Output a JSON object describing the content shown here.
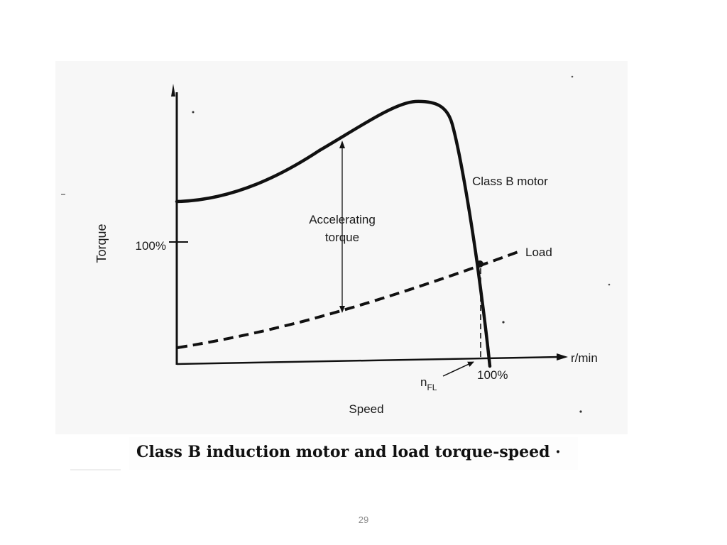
{
  "diagram": {
    "y_axis_label": "Torque",
    "x_axis_label": "Speed",
    "y_tick_label": "100%",
    "x_unit_label": "r/min",
    "x_tick_label": "100%",
    "full_load_speed_label": "n",
    "full_load_speed_subscript": "FL",
    "motor_curve_label": "Class B motor",
    "load_curve_label": "Load",
    "accelerating_label_line1": "Accelerating",
    "accelerating_label_line2": "torque"
  },
  "caption": "Class B induction motor and load torque-speed ·",
  "page_number": "29"
}
